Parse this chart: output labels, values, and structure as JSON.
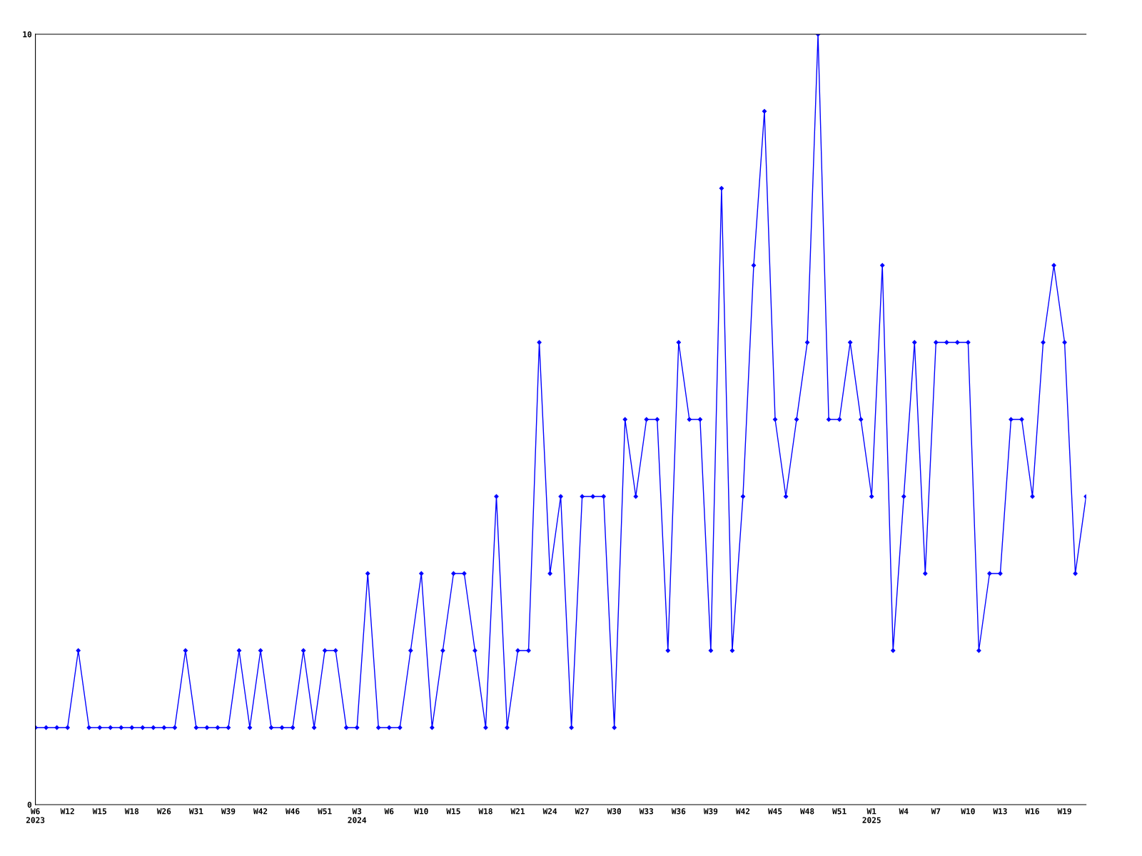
{
  "chart_data": {
    "type": "line",
    "categories": [
      "W6\n2023",
      null,
      null,
      "W12",
      null,
      null,
      "W15",
      null,
      null,
      "W18",
      null,
      null,
      "W26",
      null,
      null,
      "W31",
      null,
      null,
      "W39",
      null,
      null,
      "W42",
      null,
      null,
      "W46",
      null,
      null,
      "W51",
      null,
      null,
      "W3\n2024",
      null,
      null,
      "W6",
      null,
      null,
      "W10",
      null,
      null,
      "W15",
      null,
      null,
      "W18",
      null,
      null,
      "W21",
      null,
      null,
      "W24",
      null,
      null,
      "W27",
      null,
      null,
      "W30",
      null,
      null,
      "W33",
      null,
      null,
      "W36",
      null,
      null,
      "W39",
      null,
      null,
      "W42",
      null,
      null,
      "W45",
      null,
      null,
      "W48",
      null,
      null,
      "W51",
      null,
      null,
      "W1\n2025",
      null,
      null,
      "W4",
      null,
      null,
      "W7",
      null,
      null,
      "W10",
      null,
      null,
      "W13",
      null,
      null,
      "W16",
      null,
      null,
      "W19",
      null,
      null
    ],
    "series": [
      {
        "color": "#0000ff",
        "values": [
          1,
          1,
          1,
          1,
          2,
          1,
          1,
          1,
          1,
          1,
          1,
          1,
          1,
          1,
          2,
          1,
          1,
          1,
          1,
          2,
          1,
          2,
          1,
          1,
          1,
          2,
          1,
          2,
          2,
          1,
          1,
          3,
          1,
          1,
          1,
          2,
          3,
          1,
          2,
          3,
          3,
          2,
          1,
          4,
          1,
          2,
          2,
          6,
          3,
          4,
          1,
          4,
          4,
          4,
          1,
          5,
          4,
          5,
          5,
          2,
          6,
          5,
          5,
          2,
          8,
          2,
          4,
          7,
          9,
          5,
          4,
          5,
          6,
          10,
          5,
          5,
          6,
          5,
          4,
          7,
          2,
          4,
          6,
          3,
          6,
          6,
          6,
          6,
          2,
          3,
          3,
          5,
          5,
          4,
          6,
          7,
          6,
          3,
          4
        ]
      }
    ],
    "ylim": [
      0,
      10
    ],
    "yticks": [
      0,
      10
    ],
    "grid": false,
    "legend": false,
    "marker": "diamond",
    "line_style": "solid"
  }
}
